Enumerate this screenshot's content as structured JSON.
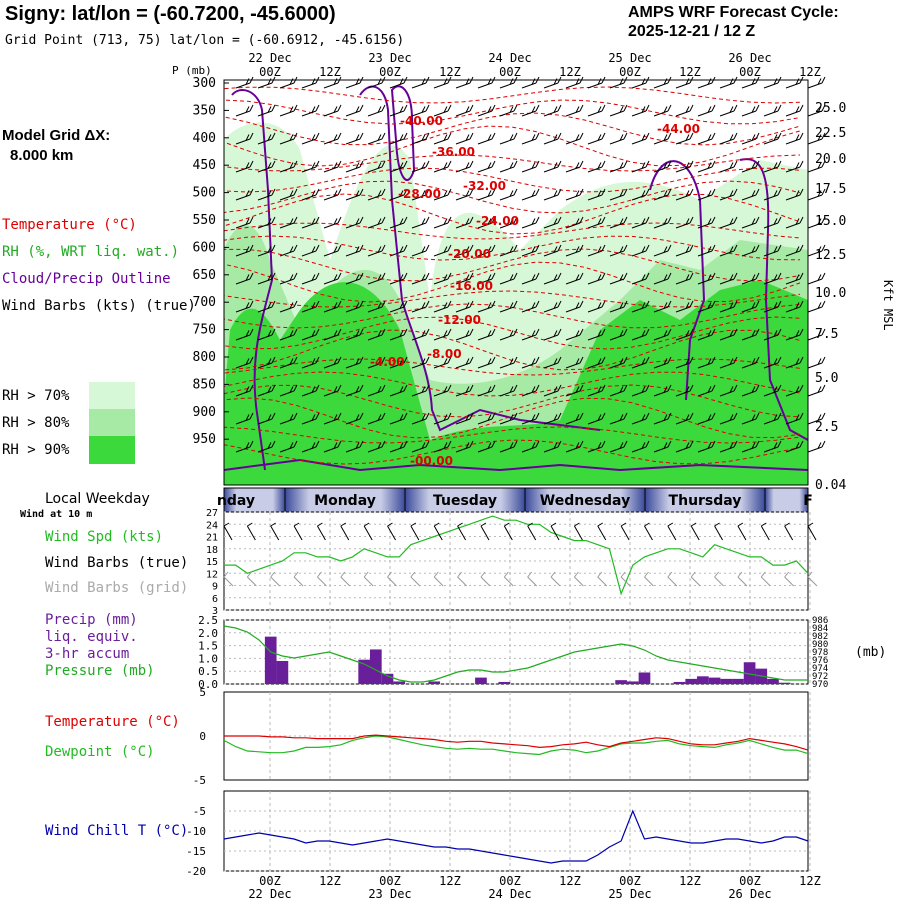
{
  "header": {
    "title": "Signy:  lat/lon = (-60.7200, -45.6000)",
    "grid_point": "Grid Point (713, 75) lat/lon = (-60.6912, -45.6156)",
    "cycle_line1": "AMPS WRF Forecast Cycle:",
    "cycle_line2": "2025-12-21 / 12  Z"
  },
  "colors": {
    "rh70": "#d6f8d6",
    "rh80": "#a6eaa6",
    "rh90": "#3cd93c",
    "temp": "#dd0000",
    "cloud": "#660099",
    "wind_spd": "#22bb22",
    "precip": "#6a1f9a",
    "pressure": "#22aa22",
    "dewpoint": "#22bb22",
    "windchill": "#0000aa",
    "grid_barbs": "#999999"
  },
  "sidebar": {
    "model_grid_label": "Model Grid ΔX:",
    "model_grid_value": "8.000 km",
    "legend_temperature": "Temperature (°C)",
    "legend_rh": "RH (%, WRT liq. wat.)",
    "legend_cloud": "Cloud/Precip Outline",
    "legend_wind": "Wind Barbs (kts) (true)",
    "rh_keys": [
      "RH > 70%",
      "RH > 80%",
      "RH > 90%"
    ]
  },
  "chart_data": [
    {
      "type": "heatmap",
      "title": "Time-height cross section",
      "ylabel_left": "P (mb)",
      "ylabel_right": "Kft MSL",
      "yticks_left": [
        "300",
        "350",
        "400",
        "450",
        "500",
        "550",
        "600",
        "650",
        "700",
        "750",
        "800",
        "850",
        "900",
        "950"
      ],
      "yticks_right": [
        "25.0",
        "22.5",
        "20.0",
        "17.5",
        "15.0",
        "12.5",
        "10.0",
        "7.5",
        "5.0",
        "2.5",
        "0.04"
      ],
      "x_top_times": [
        "00Z",
        "12Z",
        "00Z",
        "12Z",
        "00Z",
        "12Z",
        "00Z",
        "12Z",
        "00Z",
        "12Z"
      ],
      "x_top_dates": [
        "22 Dec",
        "23 Dec",
        "24 Dec",
        "25 Dec",
        "26 Dec"
      ],
      "temperature_contour_labels": [
        "-40.00",
        "-36.00",
        "-32.00",
        "-28.00",
        "-24.00",
        "-20.00",
        "-16.00",
        "-12.00",
        "-8.00",
        "-4.00",
        "-00.00",
        "-44.00"
      ]
    },
    {
      "type": "table",
      "title": "Local Weekday",
      "days": [
        "nday",
        "Monday",
        "Tuesday",
        "Wednesday",
        "Thursday",
        "F"
      ]
    },
    {
      "type": "line",
      "title": "Wind at 10 m",
      "series_labels": [
        "Wind Spd (kts)",
        "Wind Barbs (true)",
        "Wind Barbs (grid)"
      ],
      "yticks": [
        "27",
        "24",
        "21",
        "18",
        "15",
        "12",
        "9",
        "6",
        "3"
      ],
      "ylim": [
        3,
        27
      ],
      "series": [
        {
          "name": "Wind Spd (kts)",
          "values": [
            14,
            14,
            12,
            13,
            14,
            15,
            17,
            17,
            16,
            16,
            15,
            16,
            18,
            17,
            16,
            16,
            19,
            20,
            21,
            22,
            23,
            24,
            25,
            26,
            25,
            25,
            24,
            24,
            22,
            21,
            20,
            20,
            19,
            18,
            7,
            14,
            16,
            17,
            18,
            18,
            17,
            16,
            19,
            18,
            17,
            16,
            16,
            14,
            14,
            15,
            12
          ]
        }
      ]
    },
    {
      "type": "bar",
      "title": "Precip / Pressure",
      "series_labels": [
        "Precip (mm)",
        "liq. equiv.",
        "3-hr accum",
        "Pressure (mb)"
      ],
      "yticks_left": [
        "2.5",
        "2.0",
        "1.5",
        "1.0",
        "0.5",
        "0.0"
      ],
      "yticks_right": [
        "986",
        "984",
        "982",
        "980",
        "978",
        "976",
        "974",
        "972",
        "970"
      ],
      "right_unit": "(mb)",
      "precip_values": [
        0,
        0,
        0,
        0,
        1.85,
        0.9,
        0,
        0,
        0,
        0,
        0,
        0,
        0.95,
        1.35,
        0.4,
        0.1,
        0,
        0,
        0.1,
        0,
        0,
        0,
        0.25,
        0,
        0.08,
        0,
        0,
        0,
        0,
        0,
        0,
        0,
        0,
        0,
        0.15,
        0.1,
        0.45,
        0,
        0,
        0.08,
        0.2,
        0.3,
        0.25,
        0.2,
        0.2,
        0.85,
        0.6,
        0.2,
        0.05,
        0,
        0
      ],
      "pressure_values": [
        984.5,
        984,
        983,
        981,
        978,
        977,
        976.5,
        977,
        977.5,
        978,
        977,
        976,
        975,
        973.5,
        972,
        971,
        970.5,
        970.5,
        971,
        972,
        973,
        973.5,
        973.5,
        973,
        973,
        973.5,
        974,
        975,
        976,
        977,
        978,
        978.5,
        979,
        979.5,
        980,
        979.5,
        978.5,
        977,
        976,
        975.5,
        975,
        974.5,
        974,
        973.5,
        973,
        972.5,
        972,
        971.5,
        971,
        971,
        971
      ]
    },
    {
      "type": "line",
      "title": "Temperature / Dewpoint",
      "series_labels": [
        "Temperature (°C)",
        "Dewpoint (°C)"
      ],
      "yticks": [
        "5",
        "0",
        "-5"
      ],
      "ylim": [
        -5,
        5
      ],
      "series": [
        {
          "name": "Temperature (°C)",
          "values": [
            0,
            0,
            0,
            0,
            -0.1,
            -0.1,
            -0.2,
            -0.2,
            -0.3,
            -0.3,
            -0.3,
            -0.3,
            0,
            0.1,
            0,
            -0.1,
            -0.2,
            -0.3,
            -0.4,
            -0.6,
            -0.7,
            -0.6,
            -0.6,
            -0.8,
            -0.9,
            -1,
            -1.1,
            -1.3,
            -1.2,
            -1,
            -0.9,
            -0.7,
            -1,
            -1.2,
            -0.8,
            -0.6,
            -0.4,
            -0.2,
            -0.3,
            -0.6,
            -0.9,
            -1,
            -1,
            -0.8,
            -0.6,
            -0.3,
            -0.5,
            -0.7,
            -0.9,
            -1.2,
            -1.6
          ]
        },
        {
          "name": "Dewpoint (°C)",
          "values": [
            -0.5,
            -1.2,
            -1.7,
            -1.8,
            -1.9,
            -1.9,
            -1.7,
            -1.3,
            -1.3,
            -1.2,
            -1,
            -0.5,
            -0.2,
            0,
            -0.1,
            -0.4,
            -0.7,
            -1,
            -1.2,
            -1.4,
            -1.5,
            -1.4,
            -1.5,
            -1.5,
            -1.7,
            -1.9,
            -2,
            -2.1,
            -1.7,
            -1.5,
            -1.6,
            -1.9,
            -1.7,
            -1.3,
            -0.9,
            -0.8,
            -0.8,
            -0.6,
            -0.5,
            -0.9,
            -1.1,
            -1.2,
            -1.3,
            -1,
            -0.8,
            -0.5,
            -0.9,
            -1.3,
            -1.6,
            -1.6,
            -2
          ]
        }
      ]
    },
    {
      "type": "line",
      "title": "Wind Chill",
      "series_labels": [
        "Wind Chill T (°C)"
      ],
      "yticks": [
        "-5",
        "-10",
        "-15",
        "-20"
      ],
      "ylim": [
        -20,
        0
      ],
      "series": [
        {
          "name": "Wind Chill T (°C)",
          "values": [
            -12,
            -11.5,
            -11,
            -10.5,
            -11,
            -11.5,
            -12,
            -13,
            -12.5,
            -12.5,
            -13,
            -13.5,
            -13,
            -12.5,
            -12,
            -12.5,
            -13,
            -13.5,
            -14,
            -14,
            -14.5,
            -14.5,
            -15,
            -15.5,
            -16,
            -16.5,
            -17,
            -17.5,
            -18,
            -17.5,
            -17.5,
            -17.5,
            -16,
            -14,
            -12.5,
            -5,
            -12,
            -11.5,
            -12,
            -12.5,
            -13,
            -13,
            -12.5,
            -12,
            -12,
            -12.5,
            -13,
            -12.5,
            -11.5,
            -11.5,
            -12.5
          ]
        }
      ]
    }
  ],
  "bottom_axis": {
    "times": [
      "00Z",
      "12Z",
      "00Z",
      "12Z",
      "00Z",
      "12Z",
      "00Z",
      "12Z",
      "00Z",
      "12Z"
    ],
    "dates": [
      "22 Dec",
      "23 Dec",
      "24 Dec",
      "25 Dec",
      "26 Dec"
    ]
  },
  "panel_labels": {
    "local_weekday": "Local Weekday",
    "wind_at_10m": "Wind at 10 m",
    "wind_spd": "Wind Spd (kts)",
    "wind_barbs_true": "Wind Barbs (true)",
    "wind_barbs_grid": "Wind Barbs (grid)",
    "precip": "Precip (mm)",
    "liq_equiv": "liq. equiv.",
    "accum": "3-hr accum",
    "pressure": "Pressure (mb)",
    "temperature": "Temperature (°C)",
    "dewpoint": "Dewpoint (°C)",
    "wind_chill": "Wind Chill T (°C)"
  }
}
